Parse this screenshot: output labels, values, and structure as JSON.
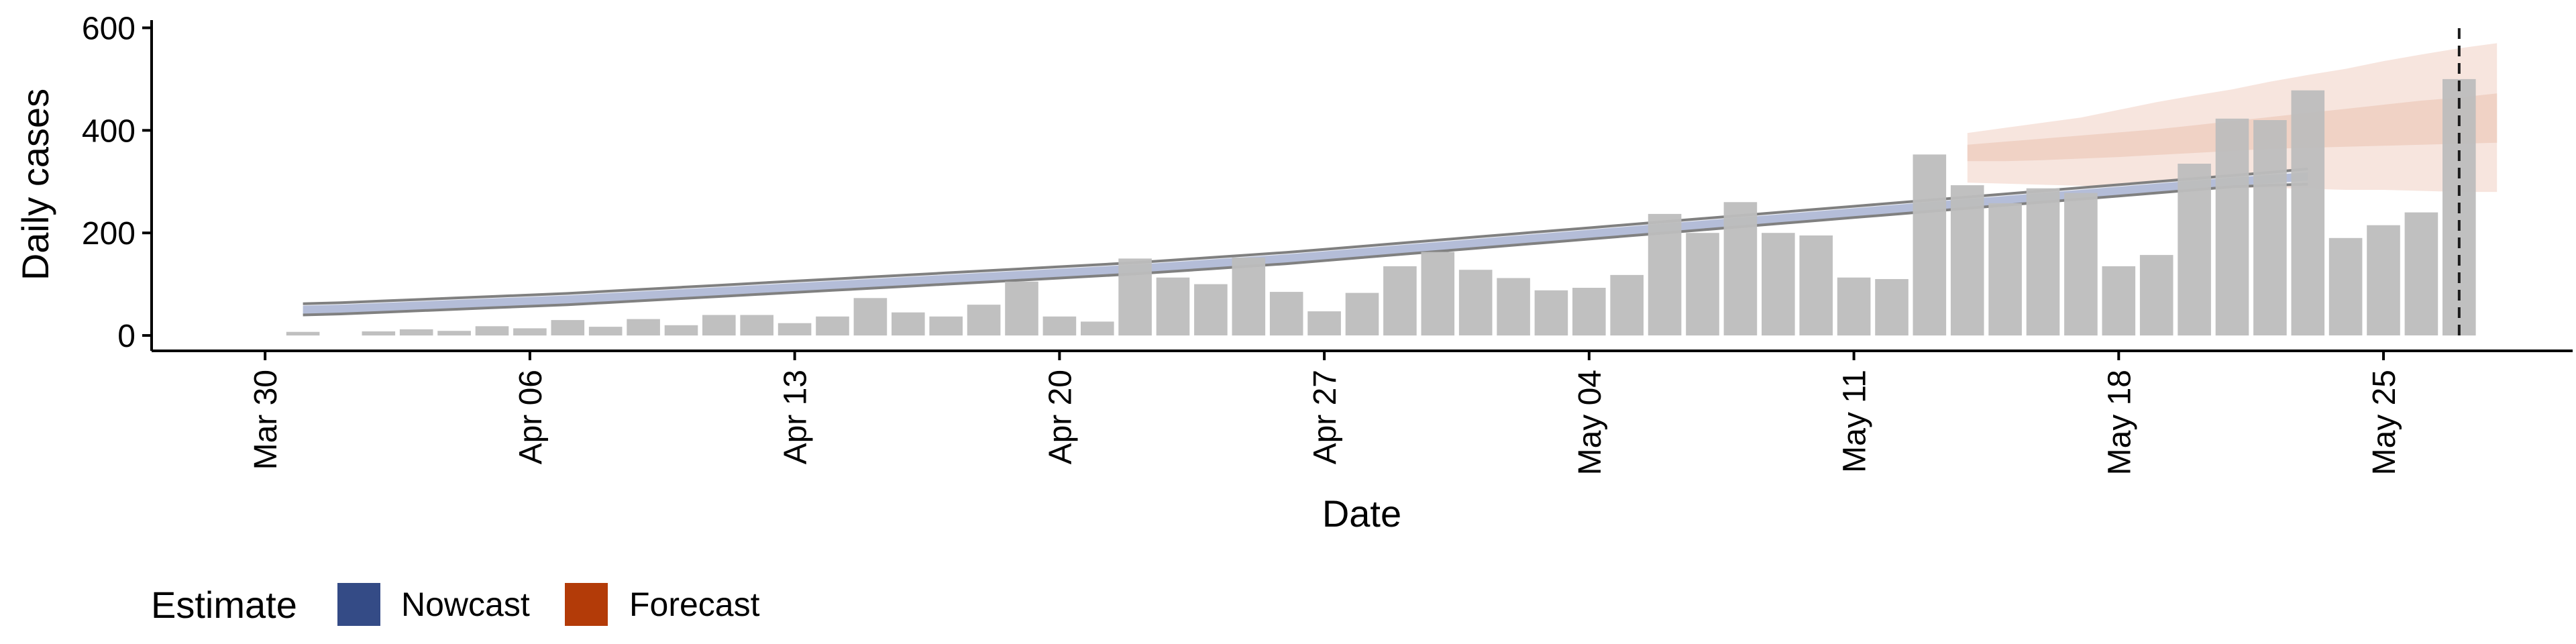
{
  "chart_data": {
    "type": "bar",
    "xlabel": "Date",
    "ylabel": "Daily cases",
    "ylim": [
      -30,
      615
    ],
    "yticks": [
      0,
      200,
      400,
      600
    ],
    "xlim": [
      "2020-03-27",
      "2020-05-30"
    ],
    "xticks": [
      {
        "date": "2020-03-30",
        "label": "Mar 30"
      },
      {
        "date": "2020-04-06",
        "label": "Apr 06"
      },
      {
        "date": "2020-04-13",
        "label": "Apr 13"
      },
      {
        "date": "2020-04-20",
        "label": "Apr 20"
      },
      {
        "date": "2020-04-27",
        "label": "Apr 27"
      },
      {
        "date": "2020-05-04",
        "label": "May 04"
      },
      {
        "date": "2020-05-11",
        "label": "May 11"
      },
      {
        "date": "2020-05-18",
        "label": "May 18"
      },
      {
        "date": "2020-05-25",
        "label": "May 25"
      }
    ],
    "observed": {
      "start_date": "2020-03-31",
      "values": [
        7,
        0,
        8,
        12,
        9,
        18,
        14,
        30,
        17,
        32,
        20,
        40,
        40,
        24,
        37,
        73,
        45,
        37,
        60,
        105,
        37,
        27,
        150,
        113,
        100,
        152,
        85,
        47,
        83,
        135,
        163,
        128,
        112,
        88,
        93,
        118,
        237,
        200,
        260,
        200,
        195,
        113,
        110,
        353,
        293,
        258,
        287,
        278,
        135,
        157,
        335,
        423,
        420,
        478,
        190,
        215,
        240,
        500
      ]
    },
    "nowcast": {
      "start_date": "2020-03-31",
      "median": [
        50,
        52,
        55,
        58,
        61,
        64,
        67,
        70,
        74,
        78,
        82,
        86,
        90,
        94,
        98,
        102,
        106,
        110,
        114,
        118,
        122,
        126,
        130,
        135,
        140,
        145,
        150,
        156,
        162,
        168,
        174,
        180,
        186,
        192,
        198,
        204,
        210,
        216,
        222,
        228,
        234,
        240,
        246,
        252,
        258,
        264,
        270,
        276,
        282,
        288,
        294,
        300,
        305,
        310
      ],
      "lower": [
        40,
        42,
        45,
        48,
        51,
        54,
        57,
        60,
        64,
        68,
        72,
        76,
        80,
        84,
        88,
        92,
        96,
        100,
        104,
        108,
        112,
        116,
        120,
        125,
        130,
        135,
        140,
        146,
        152,
        158,
        164,
        170,
        176,
        182,
        188,
        194,
        200,
        206,
        212,
        218,
        224,
        230,
        236,
        242,
        248,
        254,
        260,
        266,
        272,
        278,
        284,
        290,
        293,
        295
      ],
      "upper": [
        62,
        64,
        67,
        70,
        73,
        76,
        79,
        82,
        86,
        90,
        94,
        98,
        102,
        106,
        110,
        114,
        118,
        122,
        126,
        130,
        134,
        138,
        142,
        147,
        152,
        157,
        162,
        168,
        174,
        180,
        186,
        192,
        198,
        204,
        210,
        216,
        222,
        228,
        234,
        240,
        246,
        252,
        258,
        264,
        270,
        276,
        282,
        288,
        294,
        300,
        306,
        312,
        318,
        325
      ]
    },
    "forecast": {
      "start_date": "2020-05-14",
      "inner_lower": [
        340,
        340,
        342,
        345,
        348,
        352,
        356,
        360,
        364,
        366,
        368,
        370,
        372,
        374,
        376
      ],
      "inner_upper": [
        372,
        378,
        384,
        390,
        396,
        402,
        410,
        418,
        426,
        434,
        442,
        450,
        458,
        464,
        472
      ],
      "outer_lower": [
        298,
        296,
        294,
        292,
        290,
        290,
        290,
        288,
        288,
        286,
        284,
        284,
        282,
        280,
        280
      ],
      "outer_upper": [
        395,
        405,
        415,
        425,
        440,
        455,
        468,
        480,
        495,
        508,
        520,
        535,
        548,
        560,
        570
      ]
    },
    "cutoff_date": "2020-05-27",
    "legend": {
      "title": "Estimate",
      "items": [
        {
          "name": "Nowcast",
          "color": "#344b86"
        },
        {
          "name": "Forecast",
          "color": "#b33b08"
        }
      ],
      "placement": "bottom-left"
    },
    "colors": {
      "bar": "#bdbdbd",
      "nowcast_band": "#c6cde2",
      "nowcast_median": "#b4bdd8",
      "nowcast_border": "#808080",
      "forecast_outer": "#f6e2da",
      "forecast_inner": "#eecfc2"
    }
  }
}
